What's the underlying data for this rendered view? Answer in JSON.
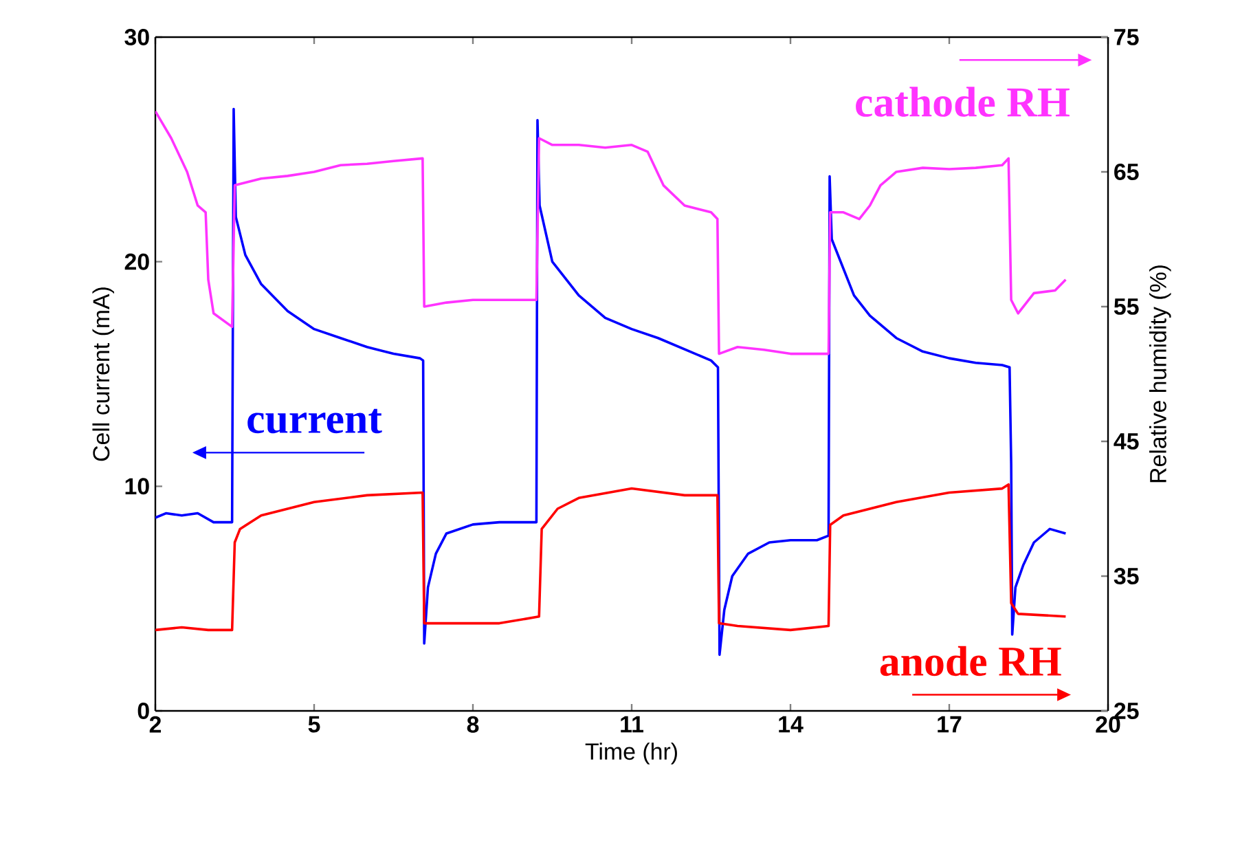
{
  "chart_data": {
    "type": "line",
    "xlabel": "Time (hr)",
    "ylabel": "Cell current (mA)",
    "y2label": "Relative humidity (%)",
    "xlim": [
      2,
      20
    ],
    "xticks": [
      2,
      5,
      8,
      11,
      14,
      17,
      20
    ],
    "ylim": [
      0,
      30
    ],
    "yticks": [
      0,
      10,
      20,
      30
    ],
    "y2lim": [
      25,
      75
    ],
    "y2ticks": [
      25,
      35,
      45,
      55,
      65,
      75
    ],
    "grid": false,
    "legend": "top right",
    "marker": "none",
    "line_style": "solid",
    "series": [
      {
        "name": "current",
        "color": "#0000ff",
        "axis": "y",
        "x": [
          2.0,
          2.2,
          2.5,
          2.8,
          3.1,
          3.45,
          3.48,
          3.52,
          3.7,
          4.0,
          4.5,
          5.0,
          5.5,
          6.0,
          6.5,
          7.0,
          7.06,
          7.08,
          7.15,
          7.3,
          7.5,
          8.0,
          8.5,
          9.0,
          9.2,
          9.22,
          9.26,
          9.5,
          10.0,
          10.5,
          11.0,
          11.5,
          12.0,
          12.5,
          12.63,
          12.66,
          12.75,
          12.9,
          13.2,
          13.6,
          14.0,
          14.5,
          14.72,
          14.74,
          14.78,
          15.2,
          15.5,
          16.0,
          16.5,
          17.0,
          17.5,
          18.0,
          18.14,
          18.17,
          18.19,
          18.25,
          18.4,
          18.6,
          18.9,
          19.2
        ],
        "values": [
          8.6,
          8.8,
          8.7,
          8.8,
          8.4,
          8.4,
          26.8,
          22.0,
          20.3,
          19.0,
          17.8,
          17.0,
          16.6,
          16.2,
          15.9,
          15.7,
          15.6,
          3.0,
          5.5,
          7.0,
          7.9,
          8.3,
          8.4,
          8.4,
          8.4,
          26.3,
          22.5,
          20.0,
          18.5,
          17.5,
          17.0,
          16.6,
          16.1,
          15.6,
          15.3,
          2.5,
          4.5,
          6.0,
          7.0,
          7.5,
          7.6,
          7.6,
          7.8,
          23.8,
          21.0,
          18.5,
          17.6,
          16.6,
          16.0,
          15.7,
          15.5,
          15.4,
          15.3,
          11.0,
          3.4,
          5.5,
          6.5,
          7.5,
          8.1,
          7.9
        ]
      },
      {
        "name": "cathode RH",
        "color": "#ff33ff",
        "axis": "y2",
        "x": [
          2.0,
          2.3,
          2.6,
          2.8,
          2.95,
          3.0,
          3.1,
          3.45,
          3.5,
          4.0,
          4.5,
          5.0,
          5.5,
          6.0,
          6.5,
          7.05,
          7.08,
          7.5,
          8.0,
          8.5,
          9.2,
          9.25,
          9.5,
          10.0,
          10.5,
          11.0,
          11.3,
          11.6,
          12.0,
          12.5,
          12.62,
          12.65,
          13.0,
          13.5,
          14.0,
          14.72,
          14.75,
          15.0,
          15.3,
          15.5,
          15.7,
          16.0,
          16.5,
          17.0,
          17.5,
          18.0,
          18.12,
          18.17,
          18.3,
          18.6,
          19.0,
          19.2
        ],
        "values": [
          69.5,
          67.5,
          65.0,
          62.5,
          62.0,
          57.0,
          54.5,
          53.5,
          64.0,
          64.5,
          64.7,
          65.0,
          65.5,
          65.6,
          65.8,
          66.0,
          55.0,
          55.3,
          55.5,
          55.5,
          55.5,
          67.5,
          67.0,
          67.0,
          66.8,
          67.0,
          66.5,
          64.0,
          62.5,
          62.0,
          61.5,
          51.5,
          52.0,
          51.8,
          51.5,
          51.5,
          62.0,
          62.0,
          61.5,
          62.5,
          64.0,
          65.0,
          65.3,
          65.2,
          65.3,
          65.5,
          66.0,
          55.5,
          54.5,
          56.0,
          56.2,
          57.0
        ]
      },
      {
        "name": "anode RH",
        "color": "#ff0000",
        "axis": "y2",
        "x": [
          2.0,
          2.5,
          3.0,
          3.45,
          3.5,
          3.6,
          4.0,
          5.0,
          6.0,
          7.05,
          7.08,
          7.5,
          8.5,
          9.25,
          9.3,
          9.6,
          10.0,
          11.0,
          12.0,
          12.62,
          12.65,
          13.0,
          14.0,
          14.72,
          14.75,
          15.0,
          16.0,
          17.0,
          18.0,
          18.12,
          18.17,
          18.3,
          19.2
        ],
        "values": [
          31.0,
          31.2,
          31.0,
          31.0,
          37.5,
          38.5,
          39.5,
          40.5,
          41.0,
          41.2,
          31.5,
          31.5,
          31.5,
          32.0,
          38.5,
          40.0,
          40.8,
          41.5,
          41.0,
          41.0,
          31.5,
          31.3,
          31.0,
          31.3,
          38.8,
          39.5,
          40.5,
          41.2,
          41.5,
          41.8,
          33.0,
          32.2,
          32.0
        ]
      }
    ]
  }
}
